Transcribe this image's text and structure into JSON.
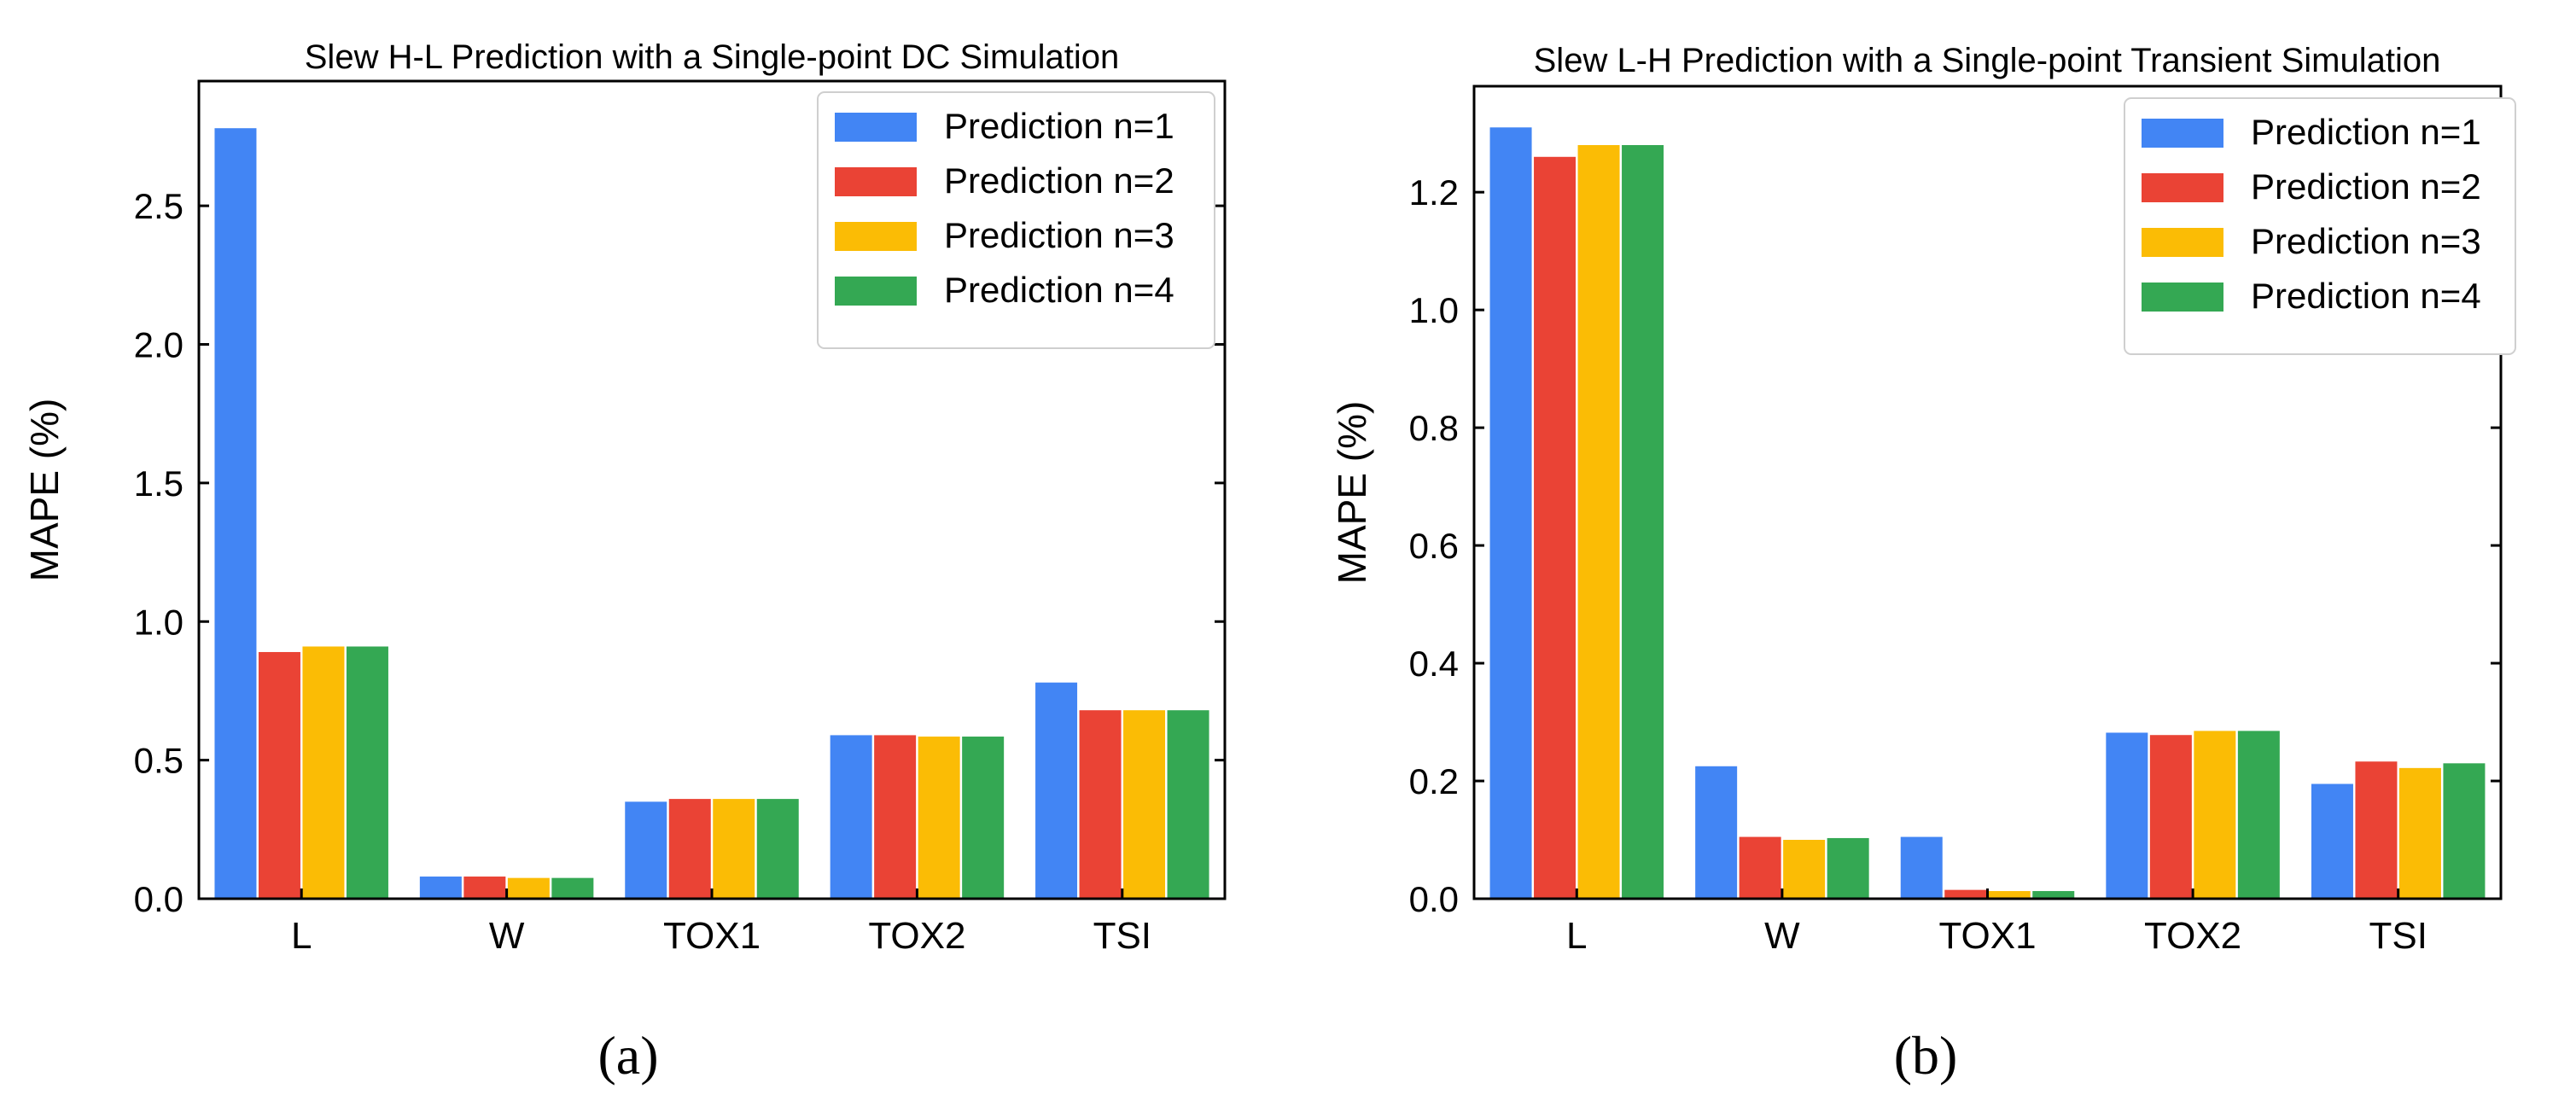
{
  "colors": {
    "n1": "#4285F4",
    "n2": "#EA4335",
    "n3": "#FBBC05",
    "n4": "#34A853"
  },
  "chart_data": [
    {
      "type": "bar",
      "title": "Slew H-L Prediction with a Single-point DC Simulation",
      "xlabel": "",
      "ylabel": "MAPE (%)",
      "ylim": [
        0,
        2.95
      ],
      "yticks": [
        0.0,
        0.5,
        1.0,
        1.5,
        2.0,
        2.5
      ],
      "ytick_labels": [
        "0.0",
        "0.5",
        "1.0",
        "1.5",
        "2.0",
        "2.5"
      ],
      "categories": [
        "L",
        "W",
        "TOX1",
        "TOX2",
        "TSI"
      ],
      "legend_position": "top-right",
      "series": [
        {
          "name": "Prediction n=1",
          "color_key": "n1",
          "values": [
            2.78,
            0.08,
            0.35,
            0.59,
            0.78
          ]
        },
        {
          "name": "Prediction n=2",
          "color_key": "n2",
          "values": [
            0.89,
            0.08,
            0.36,
            0.59,
            0.68
          ]
        },
        {
          "name": "Prediction n=3",
          "color_key": "n3",
          "values": [
            0.91,
            0.075,
            0.36,
            0.585,
            0.68
          ]
        },
        {
          "name": "Prediction n=4",
          "color_key": "n4",
          "values": [
            0.91,
            0.075,
            0.36,
            0.585,
            0.68
          ]
        }
      ],
      "caption": "(a)"
    },
    {
      "type": "bar",
      "title": "Slew L-H Prediction with a Single-point Transient Simulation",
      "xlabel": "",
      "ylabel": "MAPE (%)",
      "ylim": [
        0,
        1.38
      ],
      "yticks": [
        0.0,
        0.2,
        0.4,
        0.6,
        0.8,
        1.0,
        1.2
      ],
      "ytick_labels": [
        "0.0",
        "0.2",
        "0.4",
        "0.6",
        "0.8",
        "1.0",
        "1.2"
      ],
      "categories": [
        "L",
        "W",
        "TOX1",
        "TOX2",
        "TSI"
      ],
      "legend_position": "top-right",
      "series": [
        {
          "name": "Prediction n=1",
          "color_key": "n1",
          "values": [
            1.31,
            0.225,
            0.105,
            0.282,
            0.195
          ]
        },
        {
          "name": "Prediction n=2",
          "color_key": "n2",
          "values": [
            1.26,
            0.105,
            0.015,
            0.278,
            0.233
          ]
        },
        {
          "name": "Prediction n=3",
          "color_key": "n3",
          "values": [
            1.28,
            0.1,
            0.013,
            0.285,
            0.222
          ]
        },
        {
          "name": "Prediction n=4",
          "color_key": "n4",
          "values": [
            1.28,
            0.103,
            0.013,
            0.285,
            0.23
          ]
        }
      ],
      "caption": "(b)"
    }
  ]
}
